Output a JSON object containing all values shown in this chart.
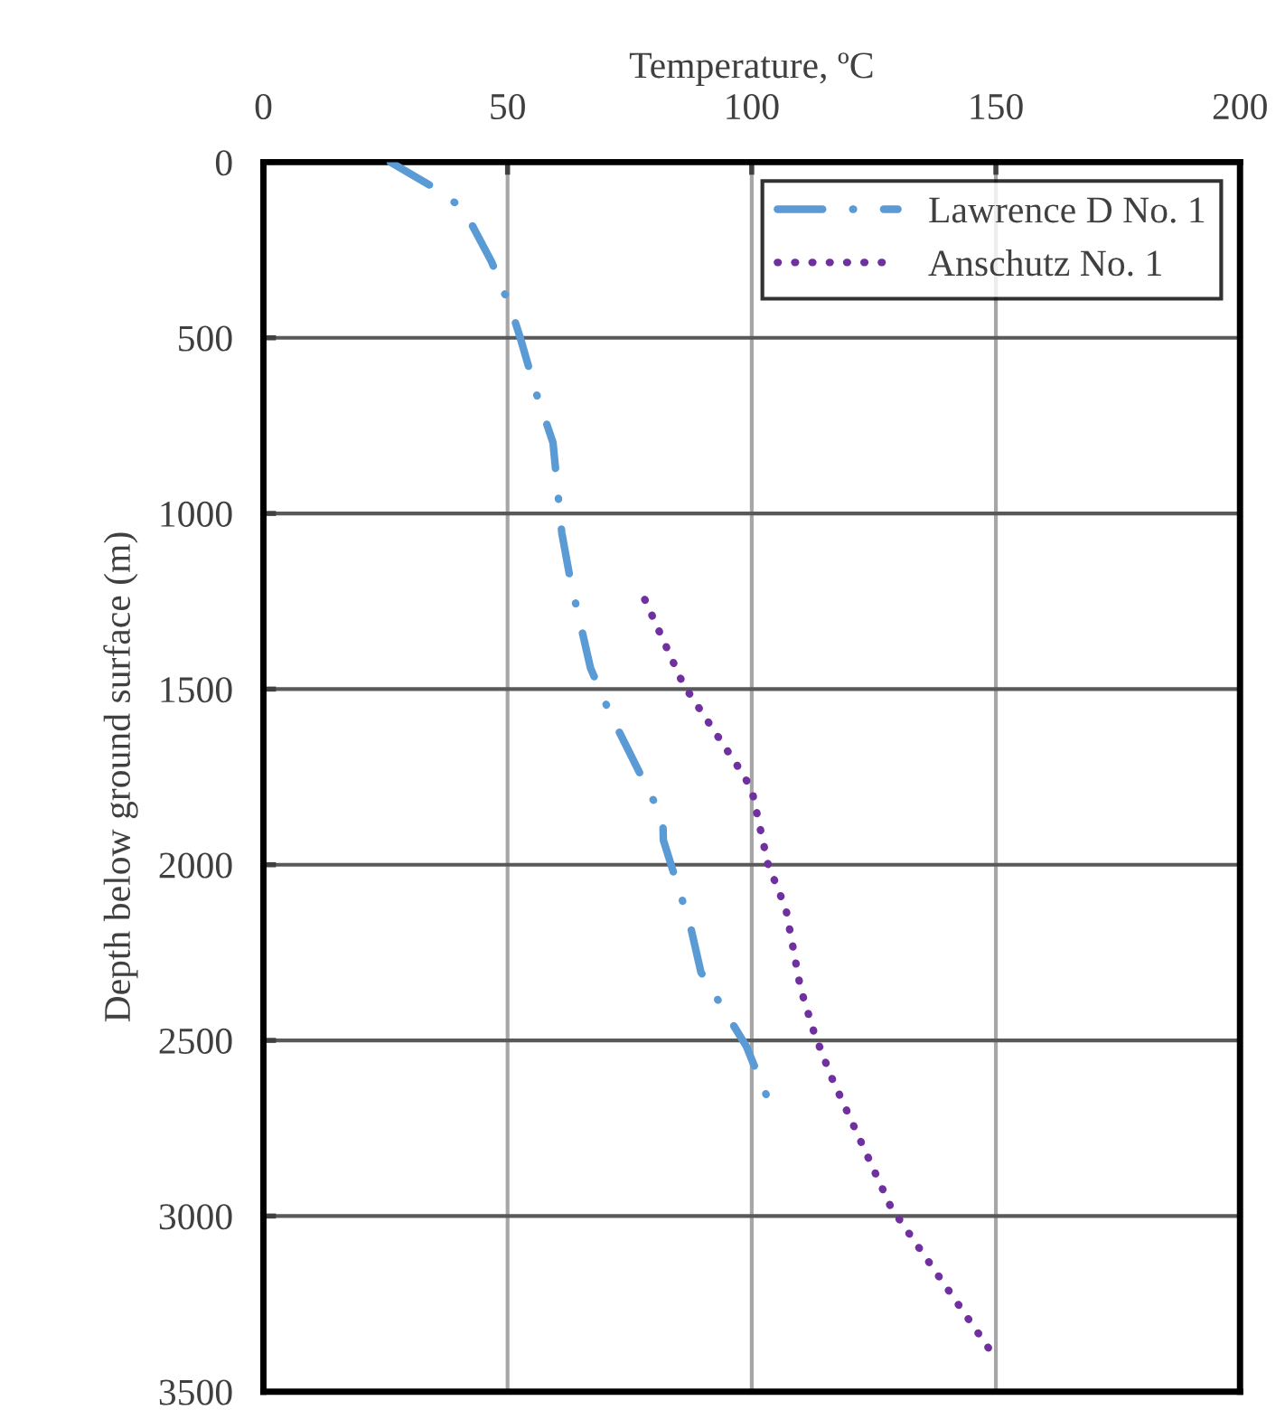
{
  "chart_data": {
    "type": "line",
    "xlabel": "Temperature, ºC",
    "ylabel": "Depth below ground surface (m)",
    "xlim": [
      0,
      200
    ],
    "xticks": [
      0,
      50,
      100,
      150,
      200
    ],
    "ylim": [
      3500,
      0
    ],
    "yticks": [
      0,
      500,
      1000,
      1500,
      2000,
      2500,
      3000,
      3500
    ],
    "grid": true,
    "legend": "top right",
    "marker": "none",
    "series": [
      {
        "name": "Lawrence D No. 1",
        "color": "#5b9bd5",
        "line_style": "dashdot",
        "x": [
          26,
          35.5,
          41,
          46.7,
          50.8,
          52.6,
          55.9,
          59.3,
          61.1,
          63,
          67,
          71,
          79.3,
          81.8,
          81.9,
          87.4,
          89.6,
          98.9,
          103
        ],
        "values": [
          0,
          77,
          134,
          283,
          422,
          500,
          659,
          798,
          1055,
          1199,
          1441,
          1570,
          1801,
          1868,
          1930,
          2172,
          2306,
          2517,
          2656
        ]
      },
      {
        "name": "Anschutz No. 1",
        "color": "#7030a0",
        "line_style": "dotted",
        "x": [
          78.1,
          86,
          98.1,
          100,
          103.3,
          107,
          110,
          112.8,
          116.3,
          128.5,
          149
        ],
        "values": [
          1245,
          1487,
          1740,
          1786,
          1997,
          2126,
          2352,
          2479,
          2604,
          2975,
          3386
        ]
      }
    ]
  }
}
